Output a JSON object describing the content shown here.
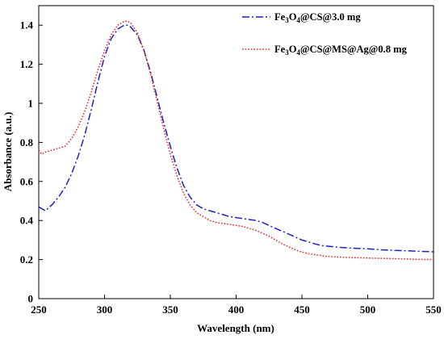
{
  "chart_data": {
    "type": "line",
    "title": "",
    "xlabel": "Wavelength (nm)",
    "ylabel": "Absorbance (a.u.)",
    "xlim": [
      250,
      550
    ],
    "ylim": [
      0,
      1.5
    ],
    "x_ticks": [
      250,
      300,
      350,
      400,
      450,
      500,
      550
    ],
    "y_ticks": [
      0,
      0.2,
      0.4,
      0.6,
      0.8,
      1,
      1.2,
      1.4
    ],
    "x_tick_labels": [
      "250",
      "300",
      "350",
      "400",
      "450",
      "500",
      "550"
    ],
    "y_tick_labels": [
      "0",
      "0.2",
      "0.4",
      "0.6",
      "0.8",
      "1",
      "1.2",
      "1.4"
    ],
    "grid": false,
    "legend_position": "top-right",
    "series": [
      {
        "name": "Fe3O4@CS@3.0 mg",
        "legend": {
          "base": "Fe",
          "sub1": "3",
          "mid": "O",
          "sub2": "4",
          "rest": "@CS@3.0 mg"
        },
        "color": "#1f1fc8",
        "dash": "dash-dot",
        "x": [
          250,
          255,
          260,
          265,
          270,
          275,
          280,
          285,
          290,
          295,
          300,
          305,
          310,
          315,
          318,
          320,
          325,
          330,
          335,
          340,
          345,
          350,
          355,
          360,
          365,
          370,
          375,
          380,
          385,
          390,
          395,
          400,
          405,
          410,
          415,
          420,
          425,
          430,
          435,
          440,
          445,
          450,
          455,
          460,
          465,
          470,
          480,
          490,
          500,
          510,
          520,
          530,
          540,
          550
        ],
        "y": [
          0.47,
          0.45,
          0.48,
          0.52,
          0.57,
          0.64,
          0.73,
          0.84,
          0.97,
          1.11,
          1.24,
          1.33,
          1.38,
          1.4,
          1.4,
          1.39,
          1.35,
          1.27,
          1.16,
          1.03,
          0.9,
          0.78,
          0.67,
          0.58,
          0.52,
          0.48,
          0.46,
          0.45,
          0.44,
          0.43,
          0.42,
          0.415,
          0.41,
          0.405,
          0.4,
          0.39,
          0.375,
          0.36,
          0.345,
          0.33,
          0.315,
          0.3,
          0.29,
          0.28,
          0.272,
          0.268,
          0.262,
          0.258,
          0.255,
          0.25,
          0.247,
          0.245,
          0.242,
          0.24
        ]
      },
      {
        "name": "Fe3O4@CS@MS@Ag@0.8 mg",
        "legend": {
          "base": "Fe",
          "sub1": "3",
          "mid": "O",
          "sub2": "4",
          "rest": "@CS@MS@Ag@0.8 mg"
        },
        "color": "#e8231f",
        "dash": "dotted",
        "x": [
          250,
          252,
          255,
          260,
          265,
          270,
          275,
          280,
          285,
          290,
          295,
          300,
          305,
          310,
          315,
          318,
          320,
          325,
          330,
          335,
          340,
          345,
          350,
          355,
          360,
          365,
          370,
          375,
          380,
          385,
          390,
          395,
          400,
          405,
          410,
          415,
          420,
          425,
          430,
          435,
          440,
          445,
          450,
          455,
          460,
          465,
          470,
          480,
          490,
          500,
          510,
          520,
          530,
          540,
          550
        ],
        "y": [
          0.76,
          0.74,
          0.75,
          0.76,
          0.77,
          0.78,
          0.82,
          0.88,
          0.96,
          1.06,
          1.17,
          1.27,
          1.35,
          1.4,
          1.42,
          1.42,
          1.41,
          1.36,
          1.27,
          1.15,
          1.01,
          0.87,
          0.74,
          0.63,
          0.54,
          0.48,
          0.44,
          0.42,
          0.4,
          0.39,
          0.385,
          0.38,
          0.375,
          0.37,
          0.36,
          0.35,
          0.335,
          0.32,
          0.3,
          0.28,
          0.265,
          0.25,
          0.238,
          0.23,
          0.225,
          0.22,
          0.216,
          0.212,
          0.21,
          0.208,
          0.206,
          0.205,
          0.203,
          0.201,
          0.2
        ]
      }
    ]
  }
}
